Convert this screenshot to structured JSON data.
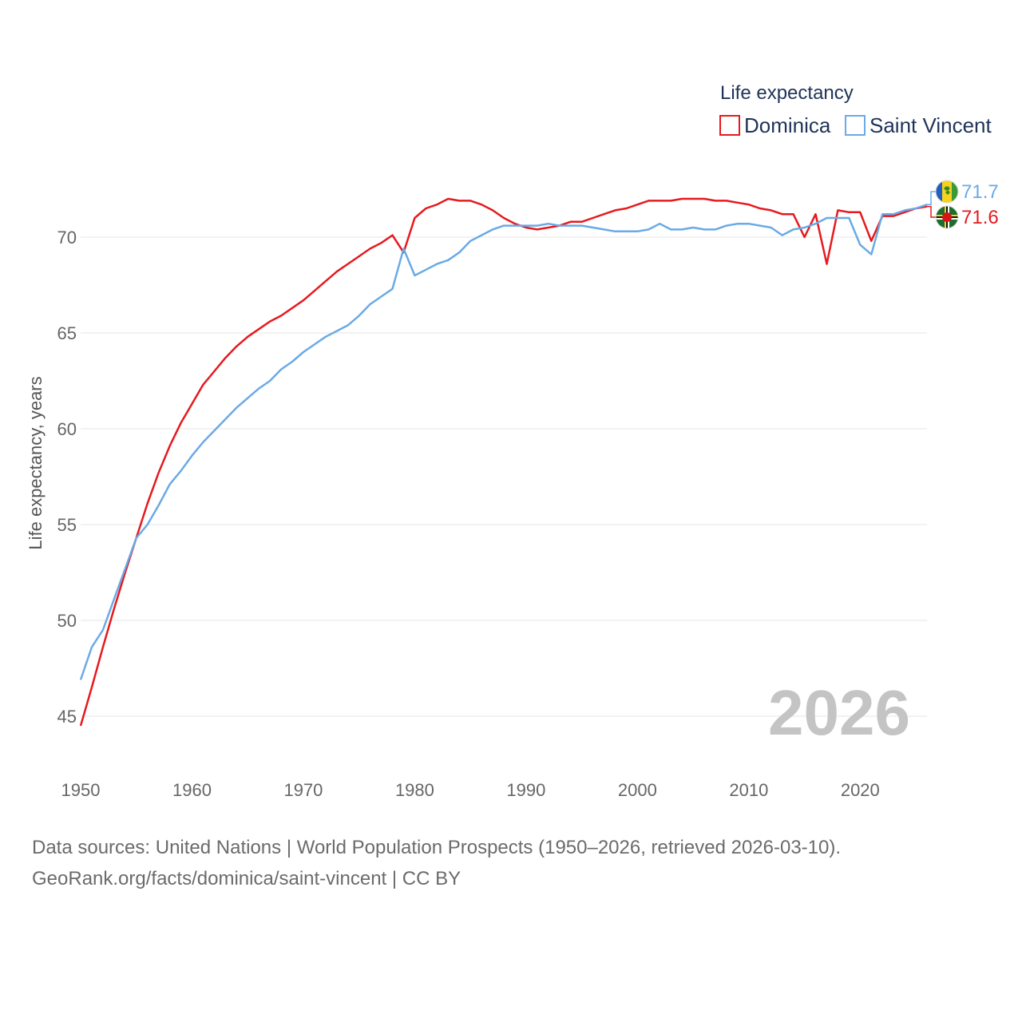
{
  "chart_data": {
    "type": "line",
    "legend_title": "Life expectancy",
    "ylabel": "Life expectancy, years",
    "xlim": [
      1950,
      2026
    ],
    "ylim": [
      44,
      73
    ],
    "y_ticks": [
      45,
      50,
      55,
      60,
      65,
      70
    ],
    "x_ticks": [
      1950,
      1960,
      1970,
      1980,
      1990,
      2000,
      2010,
      2020
    ],
    "grid": true,
    "legend_position": "top-right",
    "current_year_label": "2026",
    "series": [
      {
        "name": "Dominica",
        "color": "#e6191e",
        "flag": "dominica-flag",
        "end_value_label": "71.6",
        "x": [
          1950,
          1951,
          1952,
          1953,
          1954,
          1955,
          1956,
          1957,
          1958,
          1959,
          1960,
          1961,
          1962,
          1963,
          1964,
          1965,
          1966,
          1967,
          1968,
          1969,
          1970,
          1971,
          1972,
          1973,
          1974,
          1975,
          1976,
          1977,
          1978,
          1979,
          1980,
          1981,
          1982,
          1983,
          1984,
          1985,
          1986,
          1987,
          1988,
          1989,
          1990,
          1991,
          1992,
          1993,
          1994,
          1995,
          1996,
          1997,
          1998,
          1999,
          2000,
          2001,
          2002,
          2003,
          2004,
          2005,
          2006,
          2007,
          2008,
          2009,
          2010,
          2011,
          2012,
          2013,
          2014,
          2015,
          2016,
          2017,
          2018,
          2019,
          2020,
          2021,
          2022,
          2023,
          2024,
          2025,
          2026
        ],
        "values": [
          44.5,
          46.5,
          48.6,
          50.6,
          52.5,
          54.3,
          56.1,
          57.7,
          59.1,
          60.3,
          61.3,
          62.3,
          63.0,
          63.7,
          64.3,
          64.8,
          65.2,
          65.6,
          65.9,
          66.3,
          66.7,
          67.2,
          67.7,
          68.2,
          68.6,
          69.0,
          69.4,
          69.7,
          70.1,
          69.2,
          71.0,
          71.5,
          71.7,
          72.0,
          71.9,
          71.9,
          71.7,
          71.4,
          71.0,
          70.7,
          70.5,
          70.4,
          70.5,
          70.6,
          70.8,
          70.8,
          71.0,
          71.2,
          71.4,
          71.5,
          71.7,
          71.9,
          71.9,
          71.9,
          72.0,
          72.0,
          72.0,
          71.9,
          71.9,
          71.8,
          71.7,
          71.5,
          71.4,
          71.2,
          71.2,
          70.0,
          71.2,
          68.6,
          71.4,
          71.3,
          71.3,
          69.8,
          71.1,
          71.1,
          71.3,
          71.5,
          71.6
        ]
      },
      {
        "name": "Saint Vincent",
        "color": "#6aaae6",
        "flag": "saint-vincent-flag",
        "end_value_label": "71.7",
        "x": [
          1950,
          1951,
          1952,
          1953,
          1954,
          1955,
          1956,
          1957,
          1958,
          1959,
          1960,
          1961,
          1962,
          1963,
          1964,
          1965,
          1966,
          1967,
          1968,
          1969,
          1970,
          1971,
          1972,
          1973,
          1974,
          1975,
          1976,
          1977,
          1978,
          1979,
          1980,
          1981,
          1982,
          1983,
          1984,
          1985,
          1986,
          1987,
          1988,
          1989,
          1990,
          1991,
          1992,
          1993,
          1994,
          1995,
          1996,
          1997,
          1998,
          1999,
          2000,
          2001,
          2002,
          2003,
          2004,
          2005,
          2006,
          2007,
          2008,
          2009,
          2010,
          2011,
          2012,
          2013,
          2014,
          2015,
          2016,
          2017,
          2018,
          2019,
          2020,
          2021,
          2022,
          2023,
          2024,
          2025,
          2026
        ],
        "values": [
          46.9,
          48.6,
          49.5,
          51.1,
          52.7,
          54.3,
          55.0,
          56.0,
          57.1,
          57.8,
          58.6,
          59.3,
          59.9,
          60.5,
          61.1,
          61.6,
          62.1,
          62.5,
          63.1,
          63.5,
          64.0,
          64.4,
          64.8,
          65.1,
          65.4,
          65.9,
          66.5,
          66.9,
          67.3,
          69.4,
          68.0,
          68.3,
          68.6,
          68.8,
          69.2,
          69.8,
          70.1,
          70.4,
          70.6,
          70.6,
          70.6,
          70.6,
          70.7,
          70.6,
          70.6,
          70.6,
          70.5,
          70.4,
          70.3,
          70.3,
          70.3,
          70.4,
          70.7,
          70.4,
          70.4,
          70.5,
          70.4,
          70.4,
          70.6,
          70.7,
          70.7,
          70.6,
          70.5,
          70.1,
          70.4,
          70.5,
          70.7,
          71.0,
          71.0,
          71.0,
          69.6,
          69.1,
          71.2,
          71.2,
          71.4,
          71.5,
          71.7
        ]
      }
    ]
  },
  "footer": {
    "line1": "Data sources: United Nations | World Population Prospects (1950–2026, retrieved 2026-03-10).",
    "line2": "GeoRank.org/facts/dominica/saint-vincent | CC BY"
  }
}
